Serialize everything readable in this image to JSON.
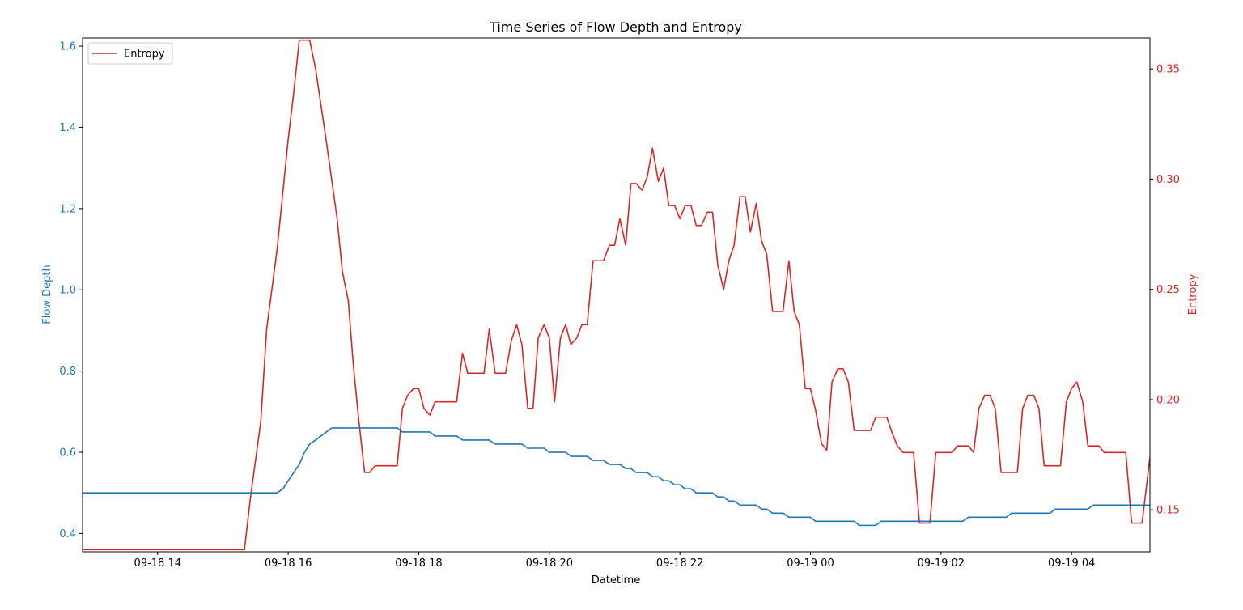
{
  "chart_data": {
    "type": "line",
    "title": "Time Series of Flow Depth and Entropy",
    "xlabel": "Datetime",
    "x_ticks": [
      "09-18 14",
      "09-18 16",
      "09-18 18",
      "09-18 20",
      "09-18 22",
      "09-19 00",
      "09-19 02",
      "09-19 04"
    ],
    "x_tick_hours": [
      14,
      16,
      18,
      20,
      22,
      24,
      26,
      28
    ],
    "xlim_hours": [
      12.85,
      29.2
    ],
    "y_left": {
      "label": "Flow Depth",
      "color": "#1f77b4",
      "ticks": [
        "0.4",
        "0.6",
        "0.8",
        "1.0",
        "1.2",
        "1.4",
        "1.6"
      ],
      "tick_values": [
        0.4,
        0.6,
        0.8,
        1.0,
        1.2,
        1.4,
        1.6
      ],
      "ylim": [
        0.355,
        1.62
      ]
    },
    "y_right": {
      "label": "Entropy",
      "color": "#d62728",
      "ticks": [
        "0.15",
        "0.20",
        "0.25",
        "0.30",
        "0.35"
      ],
      "tick_values": [
        0.15,
        0.2,
        0.25,
        0.3,
        0.35
      ],
      "ylim": [
        0.131,
        0.364
      ]
    },
    "legend": {
      "placement": "top-left",
      "entries": [
        "Entropy"
      ]
    },
    "grid": false,
    "series": [
      {
        "name": "Entropy",
        "axis": "right",
        "color": "#d62728",
        "points": [
          [
            12.85,
            0.132
          ],
          [
            15.33,
            0.132
          ],
          [
            15.42,
            0.155
          ],
          [
            15.58,
            0.19
          ],
          [
            15.67,
            0.232
          ],
          [
            15.83,
            0.268
          ],
          [
            16.0,
            0.318
          ],
          [
            16.08,
            0.338
          ],
          [
            16.17,
            0.363
          ],
          [
            16.33,
            0.363
          ],
          [
            16.42,
            0.35
          ],
          [
            16.58,
            0.318
          ],
          [
            16.75,
            0.282
          ],
          [
            16.83,
            0.258
          ],
          [
            16.92,
            0.245
          ],
          [
            17.0,
            0.215
          ],
          [
            17.08,
            0.191
          ],
          [
            17.17,
            0.167
          ],
          [
            17.25,
            0.167
          ],
          [
            17.33,
            0.17
          ],
          [
            17.67,
            0.17
          ],
          [
            17.75,
            0.196
          ],
          [
            17.83,
            0.202
          ],
          [
            17.92,
            0.205
          ],
          [
            18.0,
            0.205
          ],
          [
            18.08,
            0.196
          ],
          [
            18.17,
            0.193
          ],
          [
            18.25,
            0.199
          ],
          [
            18.58,
            0.199
          ],
          [
            18.67,
            0.221
          ],
          [
            18.75,
            0.212
          ],
          [
            19.0,
            0.212
          ],
          [
            19.08,
            0.232
          ],
          [
            19.17,
            0.212
          ],
          [
            19.33,
            0.212
          ],
          [
            19.42,
            0.227
          ],
          [
            19.5,
            0.234
          ],
          [
            19.58,
            0.225
          ],
          [
            19.67,
            0.196
          ],
          [
            19.75,
            0.196
          ],
          [
            19.83,
            0.228
          ],
          [
            19.92,
            0.234
          ],
          [
            20.0,
            0.228
          ],
          [
            20.08,
            0.199
          ],
          [
            20.17,
            0.228
          ],
          [
            20.25,
            0.234
          ],
          [
            20.33,
            0.225
          ],
          [
            20.42,
            0.228
          ],
          [
            20.5,
            0.234
          ],
          [
            20.58,
            0.234
          ],
          [
            20.67,
            0.263
          ],
          [
            20.83,
            0.263
          ],
          [
            20.92,
            0.27
          ],
          [
            21.0,
            0.27
          ],
          [
            21.08,
            0.282
          ],
          [
            21.17,
            0.27
          ],
          [
            21.25,
            0.298
          ],
          [
            21.33,
            0.298
          ],
          [
            21.42,
            0.295
          ],
          [
            21.5,
            0.301
          ],
          [
            21.58,
            0.314
          ],
          [
            21.67,
            0.299
          ],
          [
            21.75,
            0.305
          ],
          [
            21.83,
            0.288
          ],
          [
            21.92,
            0.288
          ],
          [
            22.0,
            0.282
          ],
          [
            22.08,
            0.288
          ],
          [
            22.17,
            0.288
          ],
          [
            22.25,
            0.279
          ],
          [
            22.33,
            0.279
          ],
          [
            22.42,
            0.285
          ],
          [
            22.5,
            0.285
          ],
          [
            22.58,
            0.261
          ],
          [
            22.67,
            0.25
          ],
          [
            22.75,
            0.263
          ],
          [
            22.83,
            0.27
          ],
          [
            22.92,
            0.292
          ],
          [
            23.0,
            0.292
          ],
          [
            23.08,
            0.276
          ],
          [
            23.17,
            0.289
          ],
          [
            23.25,
            0.272
          ],
          [
            23.33,
            0.266
          ],
          [
            23.42,
            0.24
          ],
          [
            23.58,
            0.24
          ],
          [
            23.67,
            0.263
          ],
          [
            23.75,
            0.24
          ],
          [
            23.83,
            0.234
          ],
          [
            23.92,
            0.205
          ],
          [
            24.0,
            0.205
          ],
          [
            24.08,
            0.195
          ],
          [
            24.17,
            0.18
          ],
          [
            24.25,
            0.177
          ],
          [
            24.33,
            0.208
          ],
          [
            24.42,
            0.214
          ],
          [
            24.5,
            0.214
          ],
          [
            24.58,
            0.208
          ],
          [
            24.67,
            0.186
          ],
          [
            24.92,
            0.186
          ],
          [
            25.0,
            0.192
          ],
          [
            25.17,
            0.192
          ],
          [
            25.25,
            0.185
          ],
          [
            25.33,
            0.179
          ],
          [
            25.42,
            0.176
          ],
          [
            25.58,
            0.176
          ],
          [
            25.67,
            0.144
          ],
          [
            25.83,
            0.144
          ],
          [
            25.92,
            0.176
          ],
          [
            26.17,
            0.176
          ],
          [
            26.25,
            0.179
          ],
          [
            26.42,
            0.179
          ],
          [
            26.5,
            0.176
          ],
          [
            26.58,
            0.196
          ],
          [
            26.67,
            0.202
          ],
          [
            26.75,
            0.202
          ],
          [
            26.83,
            0.196
          ],
          [
            26.92,
            0.167
          ],
          [
            27.17,
            0.167
          ],
          [
            27.25,
            0.196
          ],
          [
            27.33,
            0.202
          ],
          [
            27.42,
            0.202
          ],
          [
            27.5,
            0.196
          ],
          [
            27.58,
            0.17
          ],
          [
            27.83,
            0.17
          ],
          [
            27.92,
            0.199
          ],
          [
            28.0,
            0.205
          ],
          [
            28.08,
            0.208
          ],
          [
            28.17,
            0.199
          ],
          [
            28.25,
            0.179
          ],
          [
            28.42,
            0.179
          ],
          [
            28.5,
            0.176
          ],
          [
            28.83,
            0.176
          ],
          [
            28.92,
            0.144
          ],
          [
            29.08,
            0.144
          ],
          [
            29.2,
            0.174
          ]
        ]
      },
      {
        "name": "Flow Depth",
        "axis": "left",
        "color": "#1f77b4",
        "points": [
          [
            12.85,
            0.5
          ],
          [
            15.83,
            0.5
          ],
          [
            15.92,
            0.51
          ],
          [
            16.0,
            0.53
          ],
          [
            16.17,
            0.57
          ],
          [
            16.25,
            0.6
          ],
          [
            16.33,
            0.62
          ],
          [
            16.42,
            0.63
          ],
          [
            16.5,
            0.64
          ],
          [
            16.67,
            0.66
          ],
          [
            17.67,
            0.66
          ],
          [
            17.75,
            0.65
          ],
          [
            18.17,
            0.65
          ],
          [
            18.25,
            0.64
          ],
          [
            18.58,
            0.64
          ],
          [
            18.67,
            0.63
          ],
          [
            19.08,
            0.63
          ],
          [
            19.17,
            0.62
          ],
          [
            19.58,
            0.62
          ],
          [
            19.67,
            0.61
          ],
          [
            19.92,
            0.61
          ],
          [
            20.0,
            0.6
          ],
          [
            20.25,
            0.6
          ],
          [
            20.33,
            0.59
          ],
          [
            20.58,
            0.59
          ],
          [
            20.67,
            0.58
          ],
          [
            20.83,
            0.58
          ],
          [
            20.92,
            0.57
          ],
          [
            21.08,
            0.57
          ],
          [
            21.17,
            0.56
          ],
          [
            21.25,
            0.56
          ],
          [
            21.33,
            0.55
          ],
          [
            21.5,
            0.55
          ],
          [
            21.58,
            0.54
          ],
          [
            21.67,
            0.54
          ],
          [
            21.75,
            0.53
          ],
          [
            21.83,
            0.53
          ],
          [
            21.92,
            0.52
          ],
          [
            22.0,
            0.52
          ],
          [
            22.08,
            0.51
          ],
          [
            22.17,
            0.51
          ],
          [
            22.25,
            0.5
          ],
          [
            22.5,
            0.5
          ],
          [
            22.58,
            0.49
          ],
          [
            22.67,
            0.49
          ],
          [
            22.75,
            0.48
          ],
          [
            22.83,
            0.48
          ],
          [
            22.92,
            0.47
          ],
          [
            23.17,
            0.47
          ],
          [
            23.25,
            0.46
          ],
          [
            23.33,
            0.46
          ],
          [
            23.42,
            0.45
          ],
          [
            23.58,
            0.45
          ],
          [
            23.67,
            0.44
          ],
          [
            24.0,
            0.44
          ],
          [
            24.08,
            0.43
          ],
          [
            24.67,
            0.43
          ],
          [
            24.75,
            0.42
          ],
          [
            25.0,
            0.42
          ],
          [
            25.08,
            0.43
          ],
          [
            26.33,
            0.43
          ],
          [
            26.42,
            0.44
          ],
          [
            27.0,
            0.44
          ],
          [
            27.08,
            0.45
          ],
          [
            27.67,
            0.45
          ],
          [
            27.75,
            0.46
          ],
          [
            28.25,
            0.46
          ],
          [
            28.33,
            0.47
          ],
          [
            29.2,
            0.47
          ]
        ]
      }
    ]
  }
}
